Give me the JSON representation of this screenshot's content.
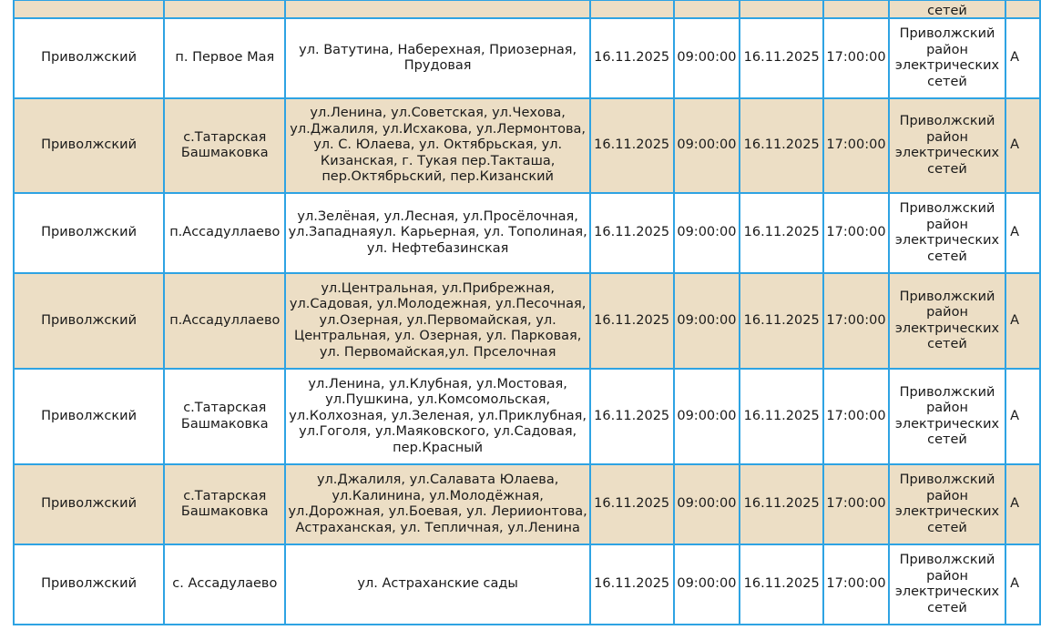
{
  "partial_row": {
    "org_tail": "сетей"
  },
  "rows": [
    {
      "district": "Приволжский",
      "locality": "п. Первое Мая",
      "streets": "ул. Ватутина, Наберехная, Приозерная, Прудовая",
      "date_start": "16.11.2025",
      "time_start": "09:00:00",
      "date_end": "16.11.2025",
      "time_end": "17:00:00",
      "org": "Приволжский район электрических сетей",
      "extra": "А"
    },
    {
      "district": "Приволжский",
      "locality": "с.Татарская Башмаковка",
      "streets": "ул.Ленина, ул.Советская, ул.Чехова, ул.Джалиля, ул.Исхакова, ул.Лермонтова, ул. С. Юлаева, ул. Октябрьская, ул. Кизанская, г. Тукая пер.Такташа, пер.Октябрьский, пер.Кизанский",
      "date_start": "16.11.2025",
      "time_start": "09:00:00",
      "date_end": "16.11.2025",
      "time_end": "17:00:00",
      "org": "Приволжский район электрических сетей",
      "extra": "А"
    },
    {
      "district": "Приволжский",
      "locality": "п.Ассадуллаево",
      "streets": "ул.Зелёная, ул.Лесная, ул.Просёлочная, ул.Западнаяул. Карьерная, ул. Тополиная, ул. Нефтебазинская",
      "date_start": "16.11.2025",
      "time_start": "09:00:00",
      "date_end": "16.11.2025",
      "time_end": "17:00:00",
      "org": "Приволжский район электрических сетей",
      "extra": "А"
    },
    {
      "district": "Приволжский",
      "locality": "п.Ассадуллаево",
      "streets": "ул.Центральная, ул.Прибрежная, ул.Садовая, ул.Молодежная, ул.Песочная, ул.Озерная, ул.Первомайская, ул. Центральная, ул. Озерная, ул. Парковая, ул. Первомайская,ул. Прселочная",
      "date_start": "16.11.2025",
      "time_start": "09:00:00",
      "date_end": "16.11.2025",
      "time_end": "17:00:00",
      "org": "Приволжский район электрических сетей",
      "extra": "А"
    },
    {
      "district": "Приволжский",
      "locality": "с.Татарская Башмаковка",
      "streets": "ул.Ленина, ул.Клубная, ул.Мостовая, ул.Пушкина, ул.Комсомольская, ул.Колхозная, ул.Зеленая, ул.Приклубная, ул.Гоголя, ул.Маяковского, ул.Садовая, пер.Красный",
      "date_start": "16.11.2025",
      "time_start": "09:00:00",
      "date_end": "16.11.2025",
      "time_end": "17:00:00",
      "org": "Приволжский район электрических сетей",
      "extra": "А"
    },
    {
      "district": "Приволжский",
      "locality": "с.Татарская Башмаковка",
      "streets": "ул.Джалиля, ул.Салавата Юлаева, ул.Калинина, ул.Молодёжная, ул.Дорожная, ул.Боевая, ул. Лериионтова, Астраханская, ул. Тепличная, ул.Ленина",
      "date_start": "16.11.2025",
      "time_start": "09:00:00",
      "date_end": "16.11.2025",
      "time_end": "17:00:00",
      "org": "Приволжский район электрических сетей",
      "extra": "А"
    },
    {
      "district": "Приволжский",
      "locality": "с. Ассадулаево",
      "streets": "ул. Астраханские сады",
      "date_start": "16.11.2025",
      "time_start": "09:00:00",
      "date_end": "16.11.2025",
      "time_end": "17:00:00",
      "org": "Приволжский район электрических сетей",
      "extra": "А"
    }
  ],
  "colors": {
    "border": "#2ea3e3",
    "alt_row": "#ecdec5"
  }
}
